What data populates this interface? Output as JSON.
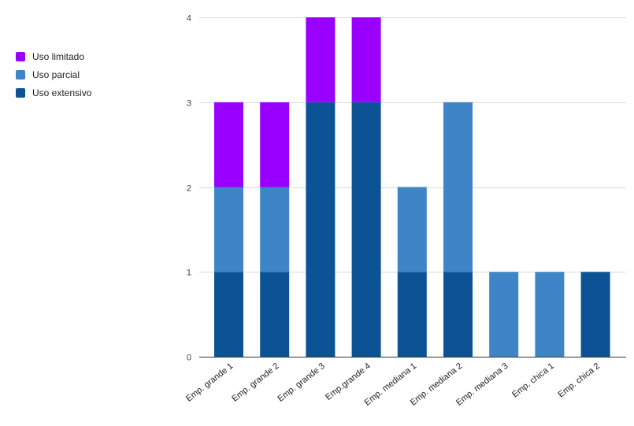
{
  "chart_data": {
    "type": "bar",
    "stacked": true,
    "title": "",
    "xlabel": "",
    "ylabel": "",
    "ylim": [
      0,
      4
    ],
    "yticks": [
      0,
      1,
      2,
      3,
      4
    ],
    "grid": true,
    "legend_position": "left",
    "categories": [
      "Emp. grande 1",
      "Emp. grande 2",
      "Emp. grande 3",
      "Emp.grande 4",
      "Emp. mediana 1",
      "Emp. mediana 2",
      "Emp. mediana 3",
      "Emp. chica 1",
      "Emp. chica 2"
    ],
    "series": [
      {
        "name": "Uso extensivo",
        "color": "#0b5394",
        "values": [
          1,
          1,
          3,
          3,
          1,
          1,
          0,
          0,
          1
        ]
      },
      {
        "name": "Uso parcial",
        "color": "#3d85c6",
        "values": [
          1,
          1,
          0,
          0,
          1,
          2,
          1,
          1,
          0
        ]
      },
      {
        "name": "Uso limitado",
        "color": "#9900ff",
        "values": [
          1,
          1,
          1,
          1,
          0,
          0,
          0,
          0,
          0
        ]
      }
    ],
    "legend_order": [
      "Uso limitado",
      "Uso parcial",
      "Uso extensivo"
    ]
  }
}
